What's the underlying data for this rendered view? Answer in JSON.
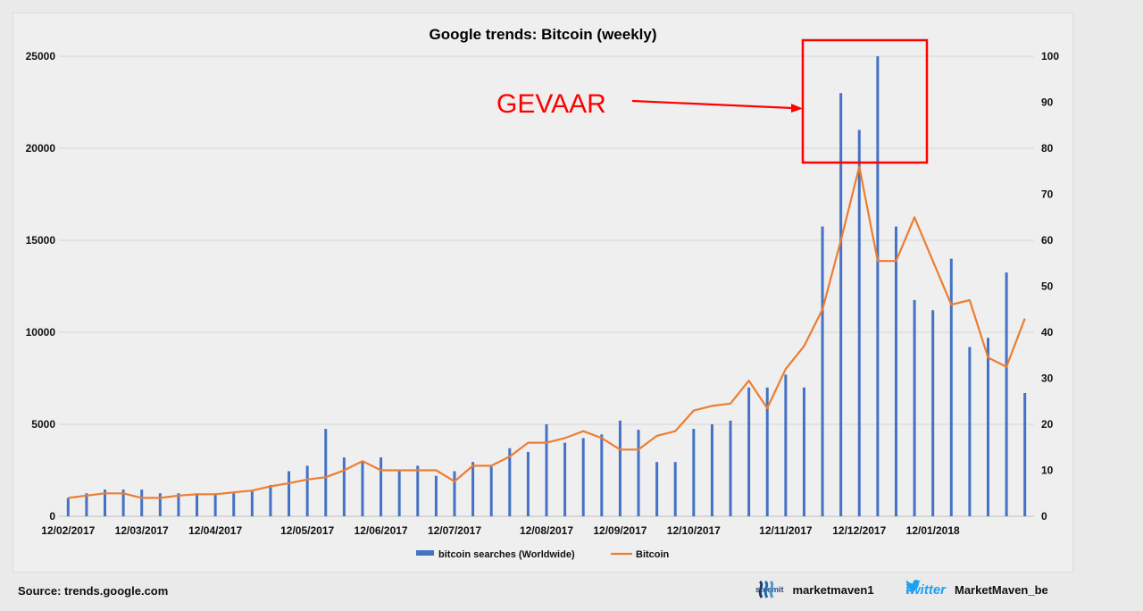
{
  "chart_data": {
    "type": "bar+line",
    "title": "Google trends: Bitcoin (weekly)",
    "x_tick_labels": [
      "12/02/2017",
      "12/03/2017",
      "12/04/2017",
      "12/05/2017",
      "12/06/2017",
      "12/07/2017",
      "12/08/2017",
      "12/09/2017",
      "12/10/2017",
      "12/11/2017",
      "12/12/2017",
      "12/01/2018"
    ],
    "x_tick_weeks": [
      0,
      4,
      8,
      13,
      17,
      21,
      26,
      30,
      34,
      39,
      43,
      47
    ],
    "y_left": {
      "ticks": [
        0,
        5000,
        10000,
        15000,
        20000,
        25000
      ],
      "ylim": [
        0,
        25000
      ]
    },
    "y_right": {
      "ticks": [
        0,
        10,
        20,
        30,
        40,
        50,
        60,
        70,
        80,
        90,
        100
      ],
      "ylim": [
        0,
        100
      ]
    },
    "series": [
      {
        "name": "bitcoin searches (Worldwide)",
        "type": "bar",
        "axis": "left",
        "color": "#4472c4",
        "values": [
          1000,
          1250,
          1450,
          1450,
          1450,
          1250,
          1250,
          1250,
          1250,
          1250,
          1350,
          1700,
          2450,
          2750,
          4750,
          3200,
          3000,
          3200,
          2450,
          2750,
          2200,
          2450,
          2950,
          2700,
          3700,
          3500,
          5000,
          4000,
          4250,
          4450,
          5200,
          4700,
          2950,
          2950,
          4750,
          5000,
          5200,
          7000,
          7000,
          7700,
          7000,
          15750,
          23000,
          21000,
          25000,
          15750,
          11750,
          11200,
          14000,
          9200,
          9700,
          13250,
          6700
        ]
      },
      {
        "name": "Bitcoin",
        "type": "line",
        "axis": "right",
        "color": "#ed7d31",
        "values": [
          4,
          4.5,
          5,
          5,
          4,
          4,
          4.5,
          4.8,
          4.8,
          5.2,
          5.6,
          6.5,
          7.2,
          8,
          8.5,
          10,
          12,
          10,
          10,
          10,
          10,
          7.6,
          11,
          11,
          13,
          16,
          16,
          17,
          18.5,
          17,
          14.5,
          14.5,
          17.5,
          18.5,
          23,
          24,
          24.5,
          29.5,
          23.5,
          32,
          37,
          45,
          60,
          76,
          55.5,
          55.5,
          65,
          55.5,
          46,
          47,
          34.5,
          32.5,
          43
        ]
      }
    ],
    "legend": {
      "position": "bottom-center"
    },
    "annotation": {
      "text": "GEVAAR",
      "color": "#ff0000"
    }
  },
  "footer": {
    "source": "Source:  trends.google.com",
    "steemit_word": "steemit",
    "steemit_handle": "marketmaven1",
    "twitter_word": "twitter",
    "twitter_handle": "MarketMaven_be"
  }
}
